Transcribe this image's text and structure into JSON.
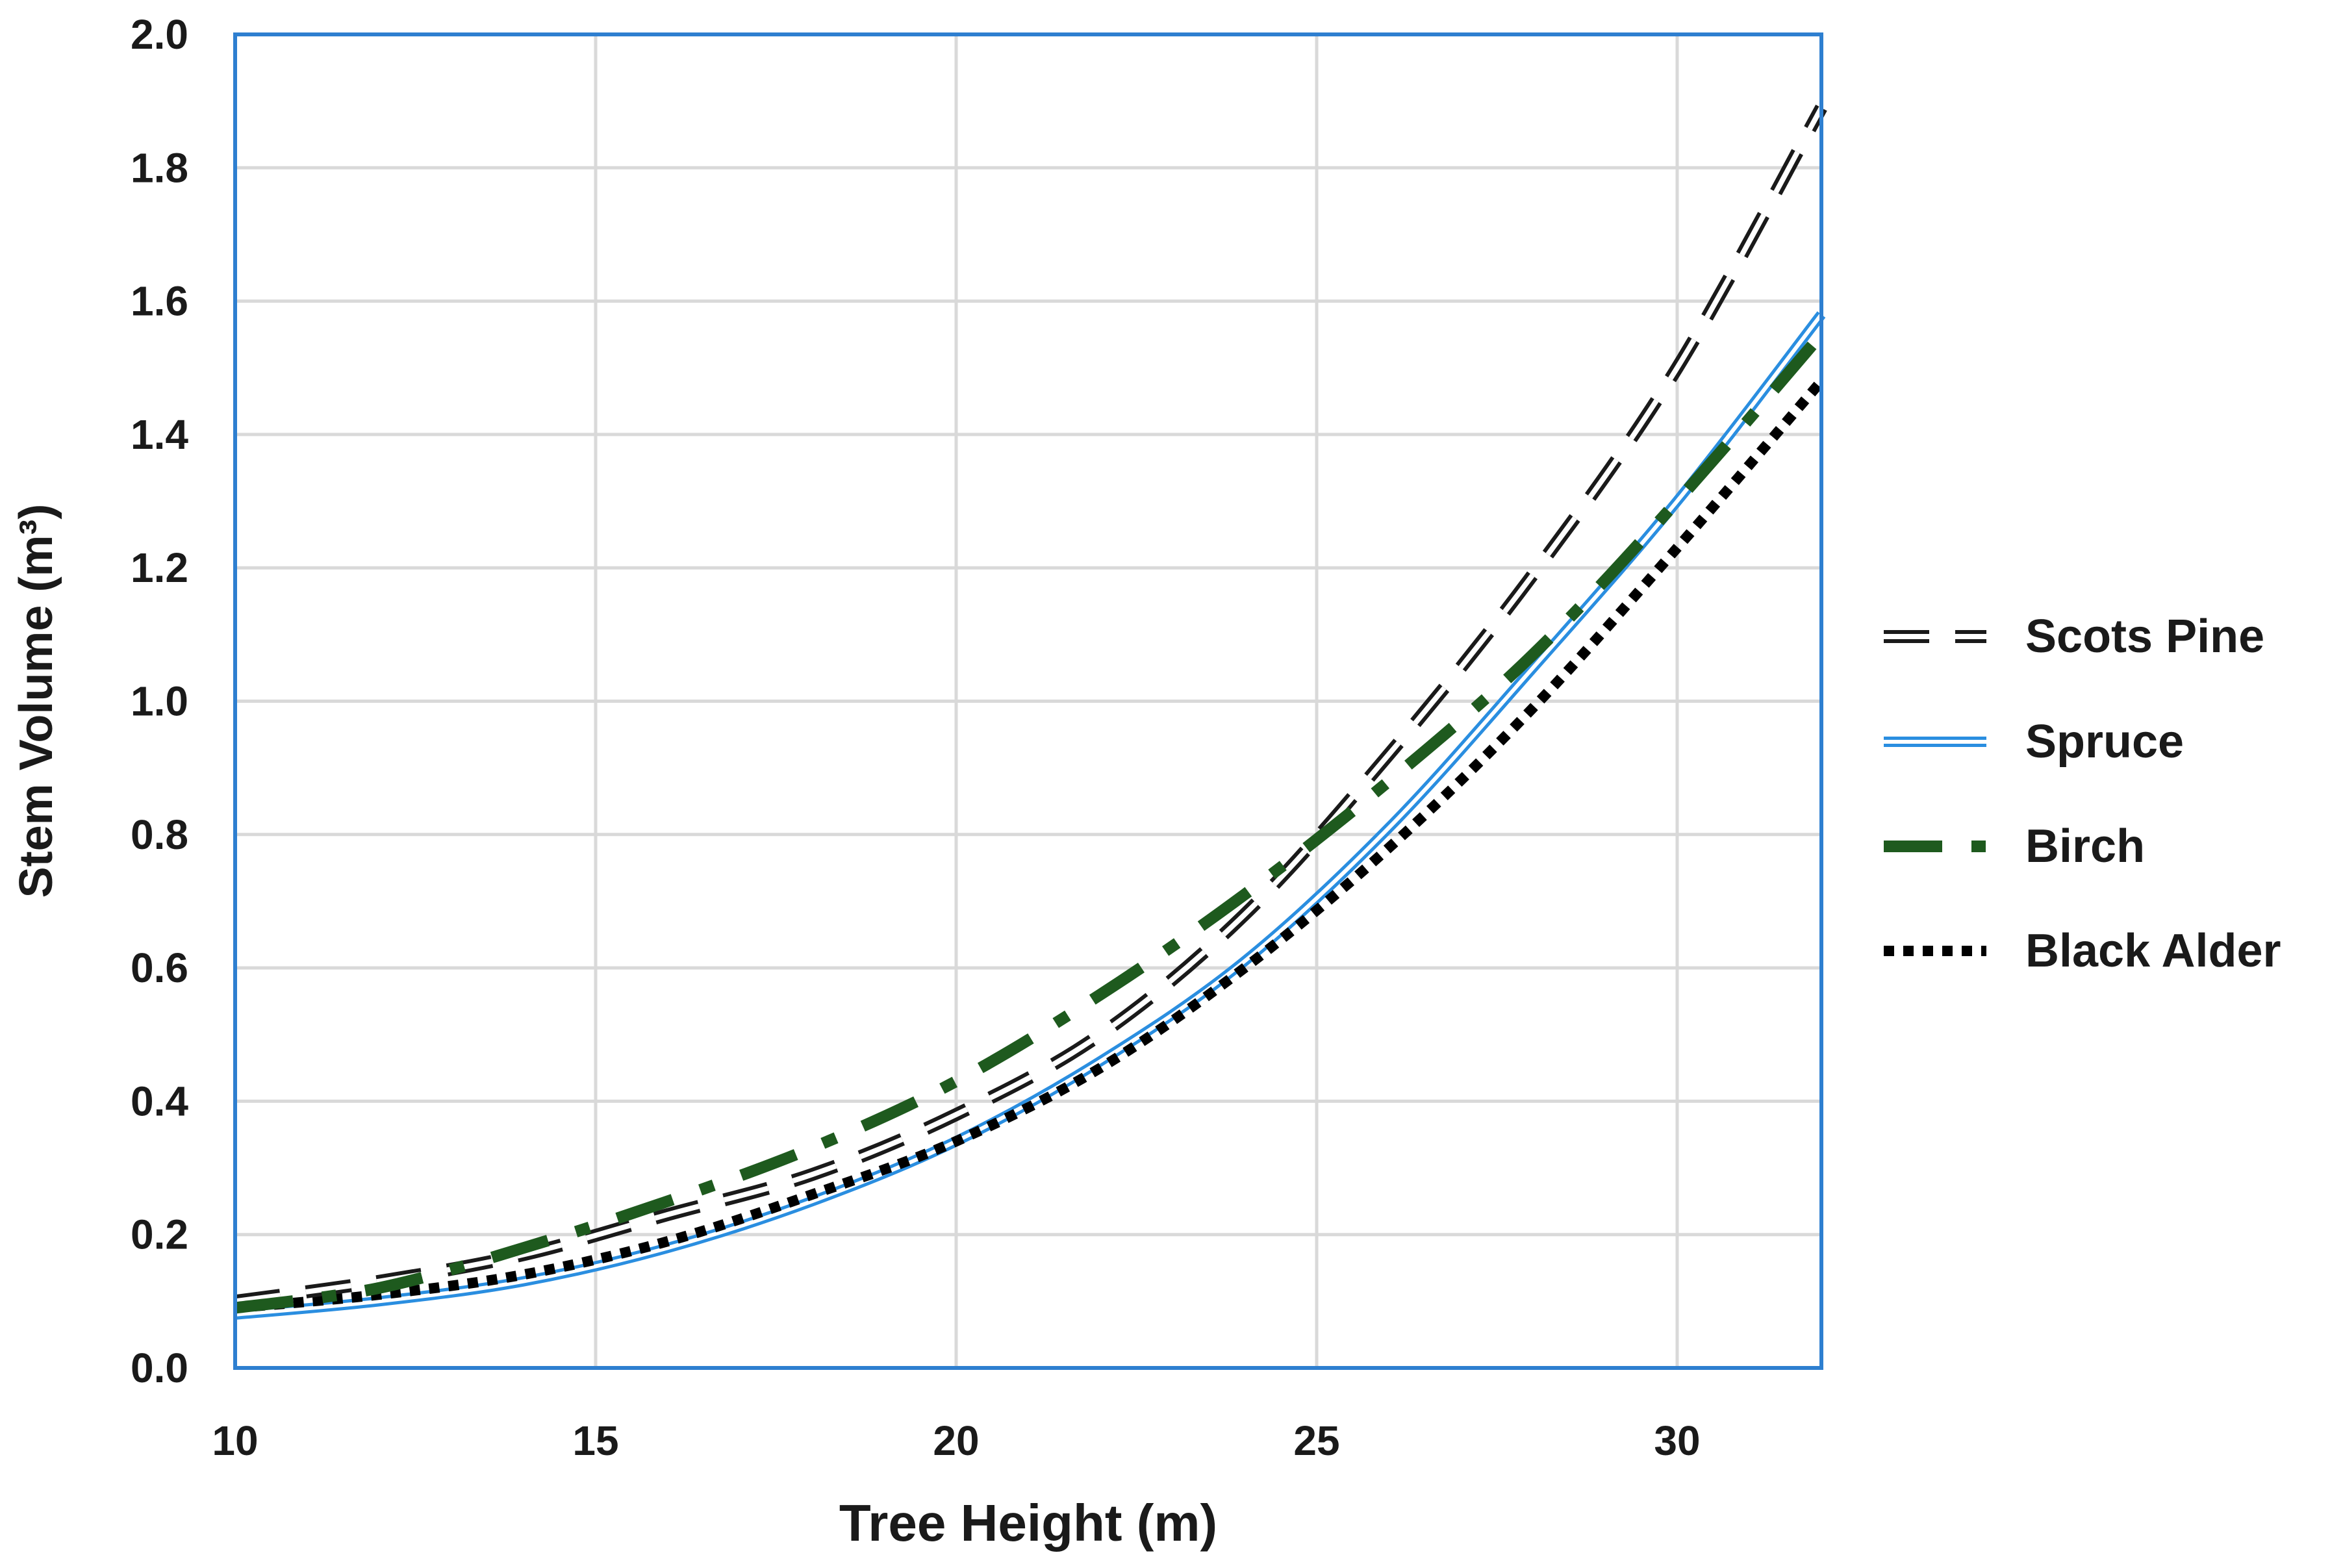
{
  "chart_data": {
    "type": "line",
    "title": "",
    "xlabel": "Tree Height (m)",
    "ylabel": "Stem Volume (m³)",
    "xlim": [
      10,
      32
    ],
    "ylim": [
      0.0,
      2.0
    ],
    "xticks": [
      10,
      15,
      20,
      25,
      30
    ],
    "xtick_labels": [
      "10",
      "15",
      "20",
      "25",
      "30"
    ],
    "yticks": [
      0.0,
      0.2,
      0.4,
      0.6,
      0.8,
      1.0,
      1.2,
      1.4,
      1.6,
      1.8,
      2.0
    ],
    "ytick_labels": [
      "0.0",
      "0.2",
      "0.4",
      "0.6",
      "0.8",
      "1.0",
      "1.2",
      "1.4",
      "1.6",
      "1.8",
      "2.0"
    ],
    "grid": true,
    "legend_position": "right",
    "x": [
      10,
      12,
      14,
      16,
      18,
      20,
      22,
      24,
      26,
      28,
      30,
      32
    ],
    "series": [
      {
        "name": "Scots Pine",
        "style": "double-dash",
        "color": "#1a1a1a",
        "values": [
          0.1,
          0.13,
          0.17,
          0.23,
          0.29,
          0.38,
          0.5,
          0.68,
          0.92,
          1.19,
          1.5,
          1.89
        ]
      },
      {
        "name": "Spruce",
        "style": "double-solid",
        "color": "#2a8ee0",
        "values": [
          0.08,
          0.1,
          0.13,
          0.18,
          0.25,
          0.34,
          0.46,
          0.61,
          0.81,
          1.05,
          1.3,
          1.58
        ]
      },
      {
        "name": "Birch",
        "style": "dash-dot",
        "color": "#1e5a1e",
        "values": [
          0.09,
          0.12,
          0.18,
          0.25,
          0.33,
          0.43,
          0.56,
          0.71,
          0.88,
          1.07,
          1.3,
          1.55
        ]
      },
      {
        "name": "Black Alder",
        "style": "dotted",
        "color": "#000000",
        "values": [
          0.09,
          0.11,
          0.14,
          0.19,
          0.26,
          0.34,
          0.45,
          0.6,
          0.78,
          0.99,
          1.23,
          1.48
        ]
      }
    ]
  }
}
